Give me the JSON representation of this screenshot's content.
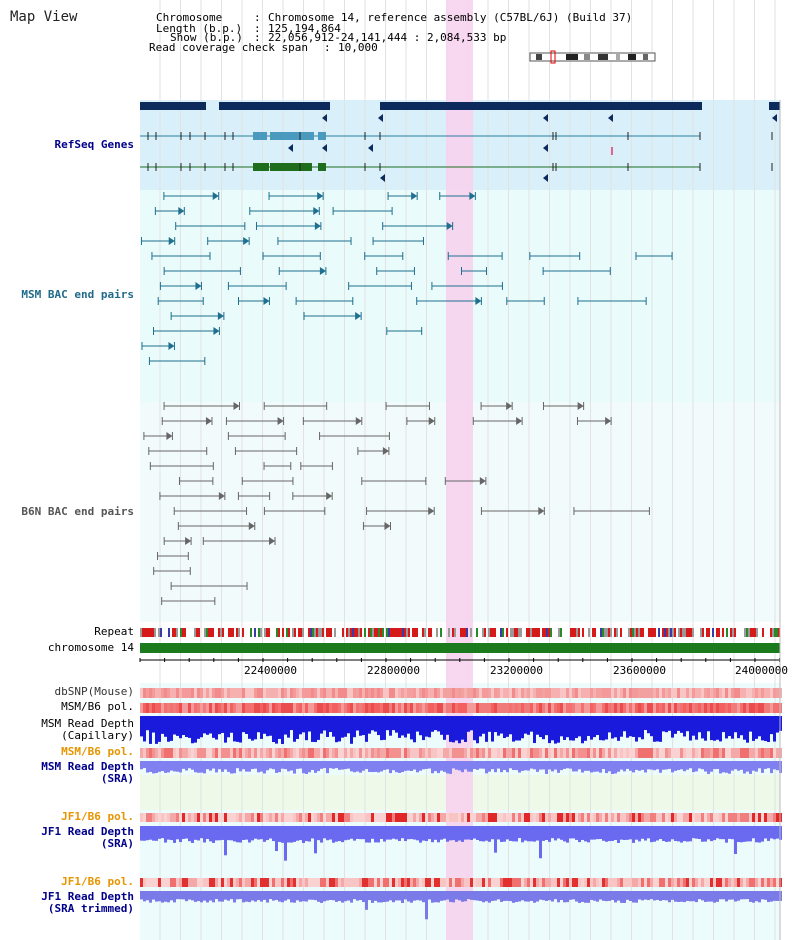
{
  "view_title": "Map View",
  "info": {
    "chromosome_label": "Chromosome",
    "chromosome_value": "Chromosome 14, reference assembly (C57BL/6J) (Build 37)",
    "length_label": "Length (b.p.)",
    "length_value": "125,194,864",
    "show_label": "Show (b.p.)",
    "show_value": "22,056,912-24,141,444 : 2,084,533 bp",
    "coverage_label": "Read coverage check span",
    "coverage_value": "10,000"
  },
  "tracks": {
    "refseq": "RefSeq Genes",
    "msm_bac": "MSM BAC end pairs",
    "b6n_bac": "B6N BAC end pairs",
    "repeat": "Repeat",
    "chromosome": "chromosome 14",
    "dbsnp": "dbSNP(Mouse)",
    "msm_pol_1": "MSM/B6 pol.",
    "msm_depth_cap_1": "MSM Read Depth",
    "msm_depth_cap_2": "(Capillary)",
    "msm_pol_2": "MSM/B6 pol.",
    "msm_depth_sra_1": "MSM Read Depth",
    "msm_depth_sra_2": "(SRA)",
    "jf1_pol_1": "JF1/B6 pol.",
    "jf1_depth_sra_1": "JF1 Read Depth",
    "jf1_depth_sra_2": "(SRA)",
    "jf1_pol_2": "JF1/B6 pol.",
    "jf1_depth_trim_1": "JF1 Read Depth",
    "jf1_depth_trim_2": "(SRA trimmed)"
  },
  "axis": {
    "ticks": [
      "22400000",
      "22800000",
      "23200000",
      "23600000",
      "24000000"
    ]
  },
  "colors": {
    "gene_dark": "#0d2a5c",
    "gene_teal": "#2a7f9e",
    "gene_green": "#1d6d1d",
    "bac_teal": "#1f6f8f",
    "bac_gray": "#666666",
    "highlight": "#f7d3ee",
    "label_blue": "#00008b",
    "label_orange": "#e69500",
    "label_teal": "#1f6a8a",
    "label_gray": "#555555"
  }
}
